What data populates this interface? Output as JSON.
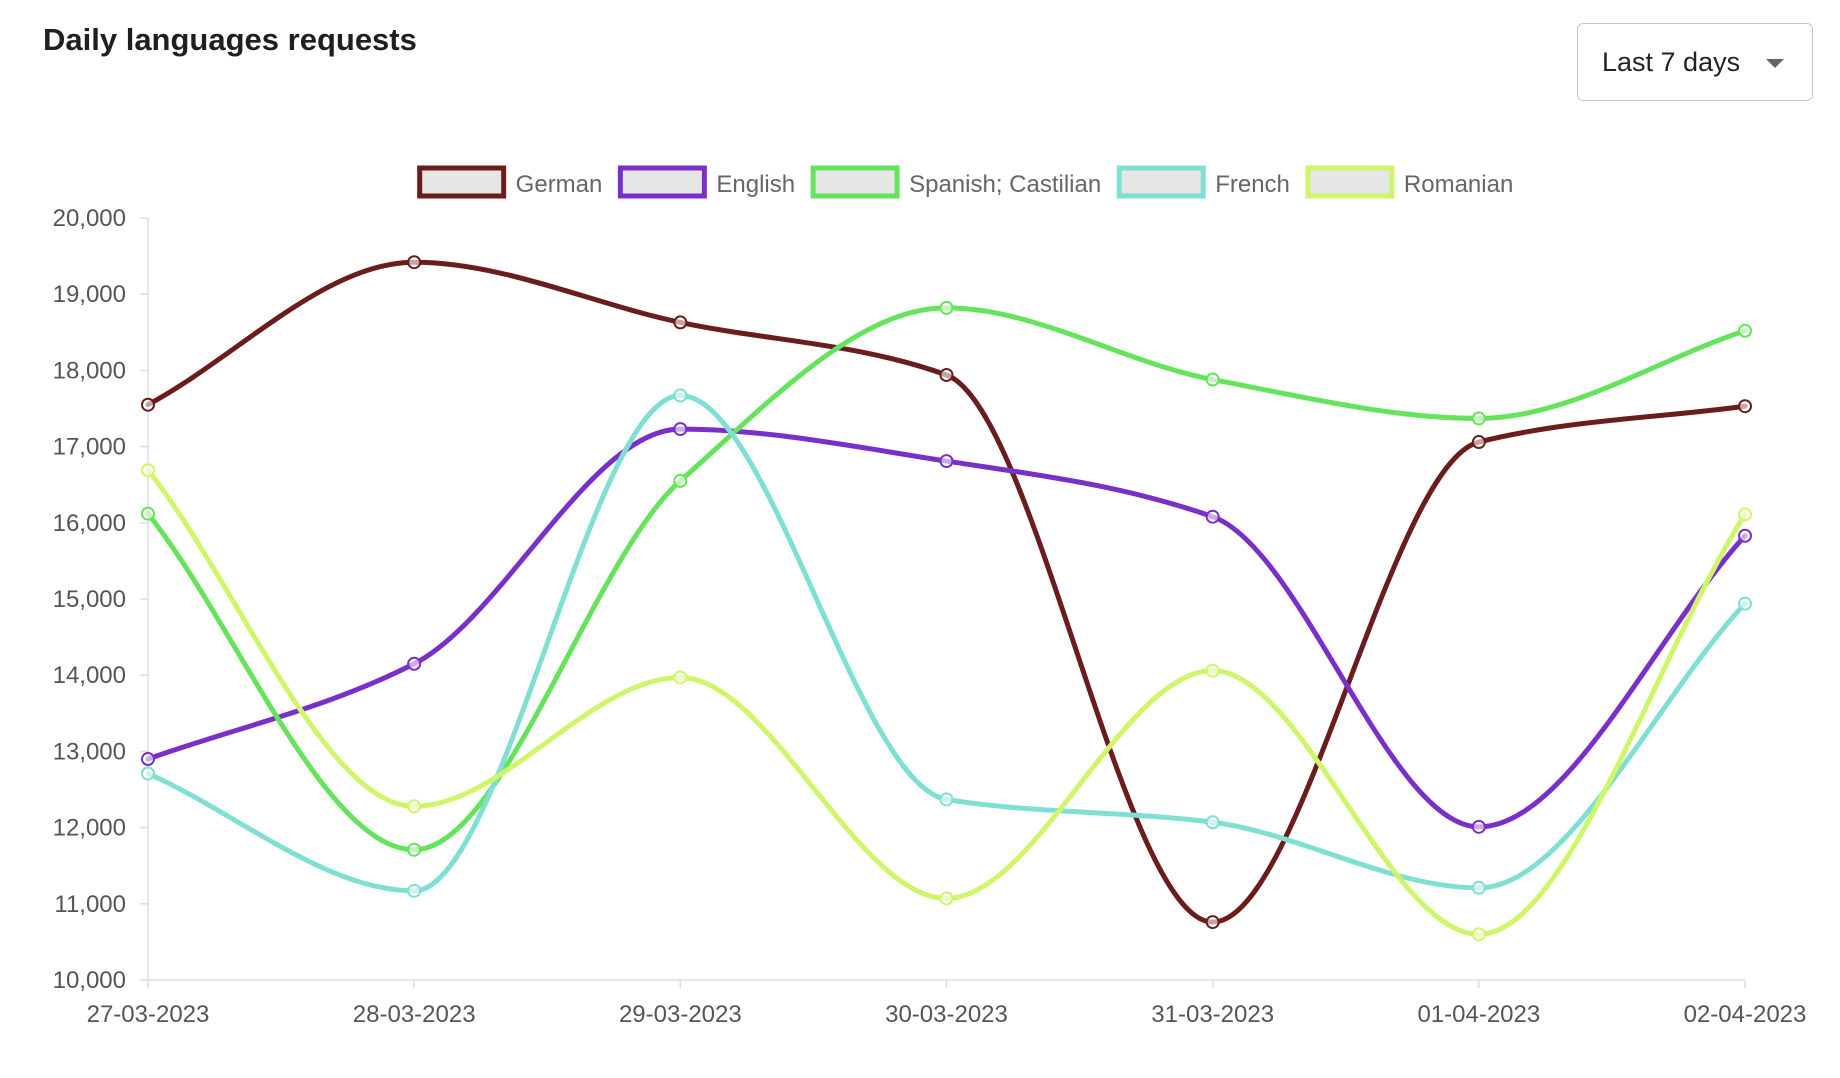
{
  "header": {
    "title": "Daily languages requests",
    "range_select": {
      "value": "Last 7 days",
      "caret_icon": "caret-down-icon"
    }
  },
  "chart_data": {
    "type": "line",
    "title": "Daily languages requests",
    "xlabel": "",
    "ylabel": "",
    "x": [
      "27-03-2023",
      "28-03-2023",
      "29-03-2023",
      "30-03-2023",
      "31-03-2023",
      "01-04-2023",
      "02-04-2023"
    ],
    "ylim": [
      10000,
      20000
    ],
    "y_ticks": [
      10000,
      11000,
      12000,
      13000,
      14000,
      15000,
      16000,
      17000,
      18000,
      19000,
      20000
    ],
    "y_tick_labels": [
      "10,000",
      "11,000",
      "12,000",
      "13,000",
      "14,000",
      "15,000",
      "16,000",
      "17,000",
      "18,000",
      "19,000",
      "20,000"
    ],
    "grid": false,
    "legend_position": "top-center",
    "smooth": true,
    "series": [
      {
        "name": "German",
        "color": "#6b1d1d",
        "values": [
          17550,
          19420,
          18630,
          17940,
          10760,
          17060,
          17530
        ]
      },
      {
        "name": "English",
        "color": "#7b2fc9",
        "values": [
          12900,
          14150,
          17230,
          16810,
          16080,
          12010,
          15830
        ]
      },
      {
        "name": "Spanish; Castilian",
        "color": "#66e35c",
        "values": [
          16120,
          11710,
          16550,
          18820,
          17880,
          17370,
          18520
        ]
      },
      {
        "name": "French",
        "color": "#7fdfd3",
        "values": [
          12710,
          11170,
          17670,
          12370,
          12070,
          11210,
          14940
        ]
      },
      {
        "name": "Romanian",
        "color": "#cff56b",
        "values": [
          16690,
          12280,
          13970,
          11070,
          14060,
          10600,
          16110
        ]
      }
    ]
  }
}
